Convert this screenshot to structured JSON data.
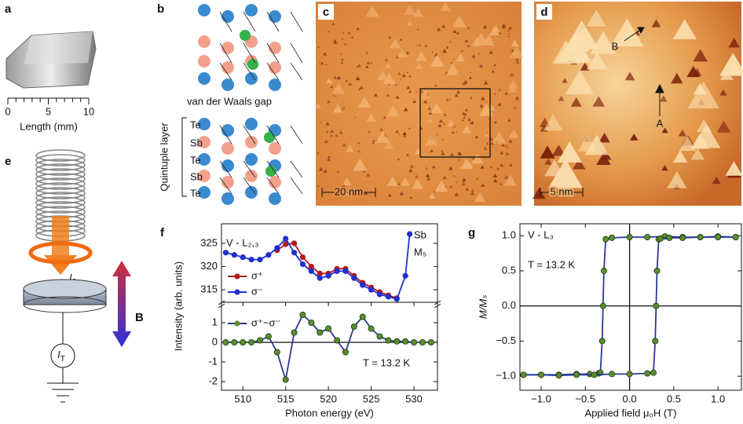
{
  "panels": {
    "a": {
      "label": "a",
      "scale_ticks": [
        0,
        5,
        10
      ],
      "scale_label": "Length (mm)"
    },
    "b": {
      "label": "b",
      "gap_label": "van der Waals gap",
      "layer_label": "Quintuple layer",
      "atoms": [
        "Te",
        "Sb",
        "Te",
        "Sb",
        "Te"
      ]
    },
    "c": {
      "label": "c",
      "scale_bar": "20 nm"
    },
    "d": {
      "label": "d",
      "scale_bar": "5 nm",
      "marker_a": "A",
      "marker_b": "B"
    },
    "e": {
      "label": "e",
      "current_in": {
        "main": "I",
        "sub": "0"
      },
      "current_t": {
        "main": "I",
        "sub": "T"
      },
      "field": "B"
    },
    "f": {
      "label": "f"
    },
    "g": {
      "label": "g"
    }
  },
  "chart_data": [
    {
      "type": "line",
      "ylabel": "Intensity (arb. units)",
      "xlim": [
        507.5,
        532.75
      ],
      "ylim": [
        312.3,
        329.2
      ],
      "yticks": [
        315,
        320,
        325
      ],
      "x": [
        508,
        509,
        510,
        511,
        512,
        513,
        514,
        515,
        516,
        517,
        518,
        519,
        520,
        521,
        522,
        523,
        524,
        525,
        526,
        527,
        528,
        529,
        529.5
      ],
      "series": [
        {
          "name": "σ⁺",
          "color": "#b3191c",
          "values": [
            null,
            null,
            null,
            null,
            null,
            null,
            323.5,
            324.8,
            325,
            322,
            320,
            318.5,
            318.5,
            319.5,
            319.5,
            318,
            316.5,
            315.5,
            314.5,
            313.8,
            313.2,
            null,
            null
          ]
        },
        {
          "name": "σ⁻",
          "color": "#2030d0",
          "values": [
            323,
            322.5,
            322,
            321.5,
            321.5,
            322.5,
            324,
            326,
            323,
            320.5,
            319,
            317.5,
            318,
            319,
            319,
            317.5,
            316,
            315,
            314,
            313.5,
            313,
            318,
            327
          ]
        }
      ],
      "markers": true,
      "annotations": [
        "V - L₂,₃",
        "Sb",
        "M₅"
      ]
    },
    {
      "type": "line",
      "xlabel": "Photon energy (eV)",
      "xlim": [
        507.5,
        532.75
      ],
      "ylim": [
        -2.44,
        2.04
      ],
      "yticks": [
        -2,
        -1,
        0,
        1
      ],
      "xticks": [
        510,
        515,
        520,
        525,
        530
      ],
      "x": [
        508,
        509,
        510,
        511,
        512,
        513,
        514,
        515,
        516,
        517,
        518,
        519,
        520,
        521,
        522,
        523,
        524,
        525,
        526,
        527,
        528,
        529,
        530,
        531,
        532
      ],
      "series": [
        {
          "name": "σ⁺−σ⁻",
          "color": "#2a3a8a",
          "marker_color": "#5b8c2e",
          "values": [
            0,
            0,
            0,
            0,
            0.1,
            0.3,
            -0.5,
            -1.9,
            0.5,
            1.4,
            1.0,
            0.5,
            0.7,
            0.1,
            -0.5,
            0.8,
            1.3,
            0.7,
            0.3,
            0.1,
            0.05,
            0.05,
            0,
            0,
            0
          ]
        }
      ],
      "markers": true,
      "origin_lines": true,
      "annotations": [
        "T = 13.2 K"
      ]
    },
    {
      "type": "line",
      "xlabel": "Applied field μ₀H (T)",
      "ylabel": "M/Mₛ",
      "xlim": [
        -1.24,
        1.265
      ],
      "ylim": [
        -1.2,
        1.17
      ],
      "xticks": [
        {
          "value": -1,
          "label": "−1.0"
        },
        {
          "value": -0.5,
          "label": "−0.5"
        },
        {
          "value": 0,
          "label": "0.0"
        },
        0.5,
        {
          "value": 1,
          "label": "1.0"
        }
      ],
      "yticks": [
        {
          "value": -1,
          "label": "−1.0"
        },
        {
          "value": -0.5,
          "label": "−0.5"
        },
        {
          "value": 0,
          "label": "0.0"
        },
        0.5,
        {
          "value": 1,
          "label": "1.0"
        }
      ],
      "series": [
        {
          "color": "#2a3a9a",
          "marker_color": "#5b8c2e",
          "x": [
            -1.2,
            -1.0,
            -0.8,
            -0.6,
            -0.45,
            -0.35,
            -0.33,
            -0.31,
            -0.3,
            -0.29,
            -0.27,
            -0.2,
            0,
            0.2,
            0.4,
            0.6,
            0.8,
            1.0,
            1.2
          ],
          "values": [
            -0.98,
            -0.98,
            -0.98,
            -0.97,
            -0.97,
            -0.96,
            -0.95,
            -0.5,
            0,
            0.5,
            0.95,
            0.97,
            0.98,
            0.98,
            0.99,
            0.98,
            0.98,
            0.99,
            0.98
          ]
        },
        {
          "color": "#2a3a9a",
          "marker_color": "#5b8c2e",
          "x": [
            -1.2,
            -1.0,
            -0.8,
            -0.6,
            -0.4,
            -0.2,
            0,
            0.2,
            0.27,
            0.29,
            0.3,
            0.31,
            0.33,
            0.35,
            0.45,
            0.6,
            0.8,
            1.0,
            1.2
          ],
          "values": [
            -0.98,
            -0.98,
            -0.99,
            -0.98,
            -0.98,
            -0.97,
            -0.97,
            -0.96,
            -0.95,
            -0.5,
            0,
            0.5,
            0.95,
            0.96,
            0.97,
            0.97,
            0.98,
            0.98,
            0.98
          ]
        }
      ],
      "markers": true,
      "origin_lines": true,
      "annotations": [
        "V - L₃",
        "T = 13.2 K"
      ]
    }
  ]
}
